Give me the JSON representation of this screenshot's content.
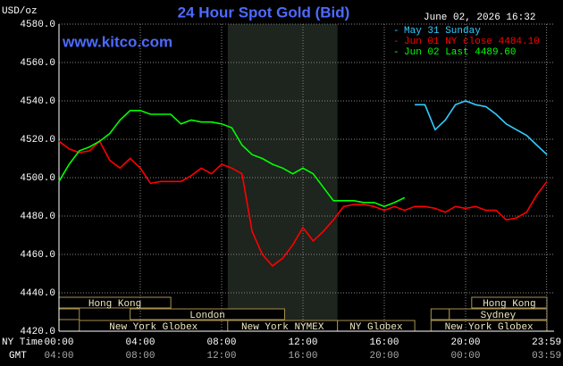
{
  "chart_data": {
    "type": "line",
    "title": "24 Hour Spot Gold (Bid)",
    "unit_label": "USD/oz",
    "timestamp": "June 02, 2026 16:32",
    "watermark": "www.kitco.com",
    "x_label": "NY Time",
    "x2_label": "GMT",
    "xlim": [
      0,
      24
    ],
    "ylim": [
      4420,
      4580
    ],
    "grid": true,
    "legend": "top-right",
    "xticks": [
      {
        "value": 0,
        "label": "00:00",
        "gmt": "04:00"
      },
      {
        "value": 4,
        "label": "04:00",
        "gmt": "08:00"
      },
      {
        "value": 8,
        "label": "08:00",
        "gmt": "12:00"
      },
      {
        "value": 12,
        "label": "12:00",
        "gmt": "16:00"
      },
      {
        "value": 16,
        "label": "16:00",
        "gmt": "20:00"
      },
      {
        "value": 20,
        "label": "20:00",
        "gmt": "00:00"
      },
      {
        "value": 23.983,
        "label": "23:59",
        "gmt": "03:59"
      }
    ],
    "yticks": [
      {
        "value": 4420,
        "label": "4420.0"
      },
      {
        "value": 4440,
        "label": "4440.0"
      },
      {
        "value": 4460,
        "label": "4460.0"
      },
      {
        "value": 4480,
        "label": "4480.0"
      },
      {
        "value": 4500,
        "label": "4500.0"
      },
      {
        "value": 4520,
        "label": "4520.0"
      },
      {
        "value": 4540,
        "label": "4540.0"
      },
      {
        "value": 4560,
        "label": "4560.0"
      },
      {
        "value": 4580,
        "label": "4580.0"
      }
    ],
    "x": [
      0,
      0.5,
      1,
      1.5,
      2,
      2.5,
      3,
      3.5,
      4,
      4.5,
      5,
      5.5,
      6,
      6.5,
      7,
      7.5,
      8,
      8.5,
      9,
      9.5,
      10,
      10.5,
      11,
      11.5,
      12,
      12.5,
      13,
      13.5,
      14,
      14.5,
      15,
      15.5,
      16,
      16.5,
      17,
      17.5,
      18,
      18.5,
      19,
      19.5,
      20,
      20.5,
      21,
      21.5,
      22,
      22.5,
      23,
      23.5,
      24
    ],
    "series": [
      {
        "name": "May 31 Sunday",
        "color": "#33ccff",
        "values": [
          null,
          null,
          null,
          null,
          null,
          null,
          null,
          null,
          null,
          null,
          null,
          null,
          null,
          null,
          null,
          null,
          null,
          null,
          null,
          null,
          null,
          null,
          null,
          null,
          null,
          null,
          null,
          null,
          null,
          null,
          null,
          null,
          null,
          null,
          null,
          4538,
          4538,
          4525,
          4530,
          4538,
          4540,
          4538,
          4537,
          4533,
          4528,
          4525,
          4522,
          4517,
          4512
        ]
      },
      {
        "name": "Jun 01 NY close 4484.10",
        "color": "#ff0000",
        "values": [
          4519,
          4515,
          4513,
          4514,
          4519,
          4509,
          4505,
          4510,
          4505,
          4497,
          4498,
          4498,
          4498,
          4501,
          4505,
          4502,
          4507,
          4505,
          4502,
          4472,
          4460,
          4454,
          4458,
          4465,
          4474,
          4467,
          4472,
          4478,
          4485,
          4486,
          4486,
          4485,
          4483,
          4485,
          4483,
          4485,
          4485,
          4484,
          4482,
          4485,
          4484,
          4485,
          4483,
          4483,
          4478,
          4479,
          4482,
          4491,
          4498
        ]
      },
      {
        "name": "Jun 02 Last 4489.60",
        "color": "#00ff00",
        "values": [
          4498,
          4507,
          4514,
          4516,
          4519,
          4523,
          4530,
          4535,
          4535,
          4533,
          4533,
          4533,
          4528,
          4530,
          4529,
          4529,
          4528,
          4526,
          4517,
          4512,
          4510,
          4507,
          4505,
          4502,
          4505,
          4502,
          4495,
          4488,
          4488,
          4488,
          4487,
          4487,
          4485,
          4487,
          4489.6,
          null,
          null,
          null,
          null,
          null,
          null,
          null,
          null,
          null,
          null,
          null,
          null,
          null,
          null
        ]
      }
    ],
    "sessions": [
      {
        "label": "Hong Kong",
        "start": 0,
        "end": 5.5,
        "row": 0
      },
      {
        "label": null,
        "start": 0,
        "end": 1,
        "row": 1
      },
      {
        "label": "London",
        "start": 3.5,
        "end": 11.1,
        "row": 1
      },
      {
        "label": "New York Globex",
        "start": 1,
        "end": 8.3,
        "row": 2
      },
      {
        "label": "New York NYMEX",
        "start": 8.3,
        "end": 13.7,
        "row": 2,
        "shaded": true
      },
      {
        "label": "NY Globex",
        "start": 13.7,
        "end": 17.5,
        "row": 2
      },
      {
        "label": "Hong Kong",
        "start": 20.3,
        "end": 24,
        "row": 0
      },
      {
        "label": null,
        "start": 18.3,
        "end": 19.2,
        "row": 1
      },
      {
        "label": "Sydney",
        "start": 19.2,
        "end": 24,
        "row": 1
      },
      {
        "label": "New York Globex",
        "start": 18.3,
        "end": 24,
        "row": 2
      }
    ]
  }
}
